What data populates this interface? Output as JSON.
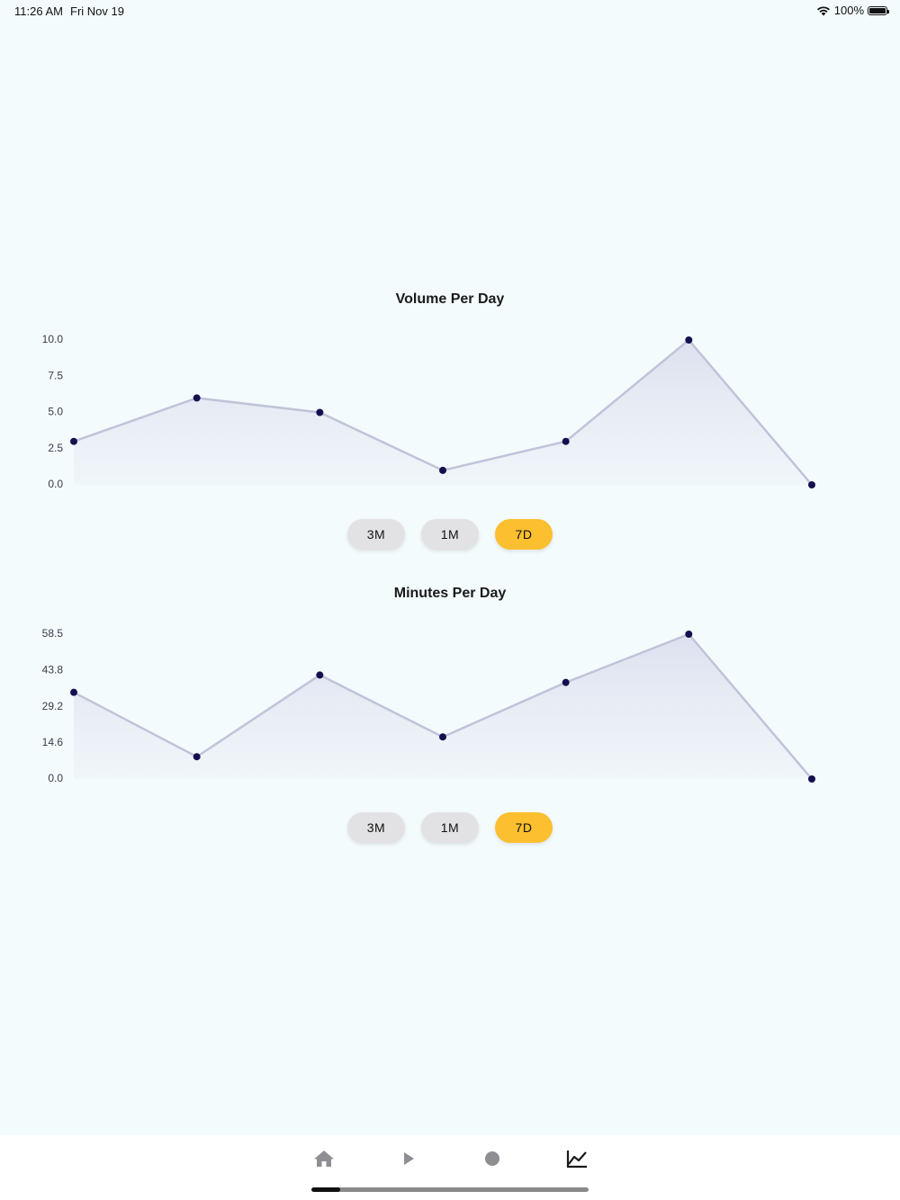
{
  "status_bar": {
    "time": "11:26 AM",
    "date": "Fri Nov 19",
    "battery": "100%"
  },
  "charts": [
    {
      "title": "Volume Per Day",
      "y_ticks": [
        "10.0",
        "7.5",
        "5.0",
        "2.5",
        "0.0"
      ],
      "buttons": [
        "3M",
        "1M",
        "7D"
      ],
      "active_button": "7D"
    },
    {
      "title": "Minutes Per Day",
      "y_ticks": [
        "58.5",
        "43.8",
        "29.2",
        "14.6",
        "0.0"
      ],
      "buttons": [
        "3M",
        "1M",
        "7D"
      ],
      "active_button": "7D"
    }
  ],
  "chart_data": [
    {
      "type": "area",
      "title": "Volume Per Day",
      "x": [
        1,
        2,
        3,
        4,
        5,
        6,
        7
      ],
      "values": [
        3.0,
        6.0,
        5.0,
        1.0,
        3.0,
        10.0,
        0.0
      ],
      "ylim": [
        0,
        10
      ],
      "y_ticks": [
        0.0,
        2.5,
        5.0,
        7.5,
        10.0
      ],
      "line_color": "#c0c3d9",
      "point_color": "#14104f"
    },
    {
      "type": "area",
      "title": "Minutes Per Day",
      "x": [
        1,
        2,
        3,
        4,
        5,
        6,
        7
      ],
      "values": [
        35,
        9,
        42,
        17,
        39,
        58.5,
        0
      ],
      "ylim": [
        0,
        58.5
      ],
      "y_ticks": [
        0.0,
        14.6,
        29.2,
        43.8,
        58.5
      ],
      "line_color": "#c0c3d9",
      "point_color": "#14104f"
    }
  ],
  "tab_bar": {
    "items": [
      {
        "name": "home-icon",
        "active": false
      },
      {
        "name": "play-icon",
        "active": false
      },
      {
        "name": "record-icon",
        "active": false
      },
      {
        "name": "chart-icon",
        "active": true
      }
    ]
  },
  "colors": {
    "background": "#f4fbfd",
    "active_button": "#fbbf2f",
    "inactive_button": "#e2e2e4",
    "icon_inactive": "#8e8e93",
    "icon_active": "#1a1a1a"
  }
}
